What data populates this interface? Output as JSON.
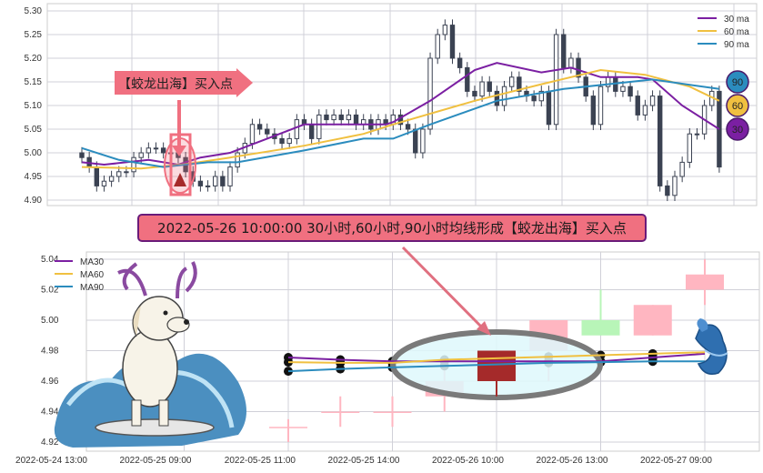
{
  "chart_data": [
    {
      "type": "candlestick",
      "ylim": [
        4.9,
        5.3
      ],
      "yticks": [
        "5.30",
        "5.25",
        "5.20",
        "5.15",
        "5.10",
        "5.05",
        "5.00",
        "4.95",
        "4.90"
      ],
      "grid": true,
      "legend_placement": "top-right",
      "closes": [
        4.99,
        4.97,
        4.93,
        4.94,
        4.95,
        4.96,
        4.96,
        4.99,
        5.0,
        5.01,
        5.01,
        5.0,
        5.0,
        4.99,
        4.96,
        4.94,
        4.93,
        4.93,
        4.95,
        4.93,
        4.97,
        5.0,
        5.02,
        5.06,
        5.05,
        5.04,
        5.03,
        5.02,
        5.03,
        5.07,
        5.06,
        5.03,
        5.08,
        5.07,
        5.08,
        5.07,
        5.08,
        5.06,
        5.07,
        5.05,
        5.07,
        5.06,
        5.08,
        5.06,
        5.05,
        5.0,
        5.05,
        5.2,
        5.25,
        5.27,
        5.2,
        5.18,
        5.13,
        5.12,
        5.15,
        5.13,
        5.1,
        5.14,
        5.16,
        5.13,
        5.12,
        5.11,
        5.13,
        5.06,
        5.25,
        5.18,
        5.2,
        5.16,
        5.12,
        5.06,
        5.14,
        5.16,
        5.13,
        5.14,
        5.12,
        5.08,
        5.1,
        5.12,
        4.93,
        4.91,
        4.95,
        4.98,
        5.04,
        5.04,
        5.1,
        5.13,
        4.97
      ],
      "series": [
        {
          "name": "30 ma",
          "color": "#7b1fa2",
          "points": [
            [
              0,
              4.98
            ],
            [
              3,
              4.975
            ],
            [
              9,
              4.985
            ],
            [
              13,
              4.975
            ],
            [
              16,
              4.99
            ],
            [
              20,
              5.0
            ],
            [
              25,
              5.03
            ],
            [
              30,
              5.06
            ],
            [
              41,
              5.06
            ],
            [
              42,
              5.065
            ],
            [
              47,
              5.11
            ],
            [
              53,
              5.175
            ],
            [
              56,
              5.19
            ],
            [
              62,
              5.17
            ],
            [
              66,
              5.18
            ],
            [
              70,
              5.16
            ],
            [
              75,
              5.16
            ],
            [
              77,
              5.155
            ],
            [
              81,
              5.1
            ],
            [
              86,
              5.05
            ]
          ]
        },
        {
          "name": "60 ma",
          "color": "#f0c040",
          "points": [
            [
              0,
              4.97
            ],
            [
              8,
              4.967
            ],
            [
              14,
              4.976
            ],
            [
              20,
              4.99
            ],
            [
              30,
              5.015
            ],
            [
              38,
              5.04
            ],
            [
              42,
              5.06
            ],
            [
              53,
              5.11
            ],
            [
              62,
              5.145
            ],
            [
              70,
              5.175
            ],
            [
              76,
              5.165
            ],
            [
              82,
              5.14
            ],
            [
              86,
              5.11
            ]
          ]
        },
        {
          "name": "90 ma",
          "color": "#2b8cbe",
          "points": [
            [
              0,
              5.01
            ],
            [
              5,
              4.985
            ],
            [
              11,
              4.97
            ],
            [
              17,
              4.98
            ],
            [
              21,
              4.98
            ],
            [
              30,
              5.005
            ],
            [
              38,
              5.03
            ],
            [
              42,
              5.03
            ],
            [
              47,
              5.06
            ],
            [
              56,
              5.11
            ],
            [
              65,
              5.135
            ],
            [
              77,
              5.155
            ],
            [
              86,
              5.135
            ]
          ]
        }
      ],
      "end_badges": [
        "90",
        "60",
        "30"
      ],
      "annotation": "【蛟龙出海】买入点",
      "signal_index": 19
    },
    {
      "type": "candlestick",
      "ylim": [
        4.915,
        5.045
      ],
      "yticks": [
        "5.04",
        "5.02",
        "5.00",
        "4.98",
        "4.96",
        "4.94",
        "4.92"
      ],
      "xticks": [
        {
          "i": 0,
          "label": "2022-05-24 13:00"
        },
        {
          "i": 2,
          "label": "2022-05-25 09:00"
        },
        {
          "i": 4,
          "label": "2022-05-25 11:00"
        },
        {
          "i": 6,
          "label": "2022-05-25 14:00"
        },
        {
          "i": 8,
          "label": "2022-05-26 10:00"
        },
        {
          "i": 10,
          "label": "2022-05-26 13:00"
        },
        {
          "i": 12,
          "label": "2022-05-27 09:00"
        }
      ],
      "grid": true,
      "legend_placement": "top-left",
      "candles": [
        {
          "i": 4,
          "o": 4.93,
          "c": 4.93,
          "h": 4.935,
          "l": 4.92,
          "color": "#ffb6c1"
        },
        {
          "i": 5,
          "o": 4.94,
          "c": 4.94,
          "h": 4.95,
          "l": 4.93,
          "color": "#ffb6c1"
        },
        {
          "i": 6,
          "o": 4.94,
          "c": 4.94,
          "h": 4.95,
          "l": 4.93,
          "color": "#ffb6c1"
        },
        {
          "i": 7,
          "o": 4.95,
          "c": 4.96,
          "h": 4.97,
          "l": 4.94,
          "color": "#ffb6c1"
        },
        {
          "i": 8,
          "o": 4.96,
          "c": 4.98,
          "h": 4.98,
          "l": 4.95,
          "color": "#a52a2a"
        },
        {
          "i": 9,
          "o": 4.98,
          "c": 5.0,
          "h": 5.0,
          "l": 4.96,
          "color": "#ffb6c1"
        },
        {
          "i": 10,
          "o": 5.0,
          "c": 4.99,
          "h": 5.02,
          "l": 4.99,
          "color": "#b8f5b8"
        },
        {
          "i": 11,
          "o": 4.99,
          "c": 5.01,
          "h": 5.01,
          "l": 4.99,
          "color": "#ffb6c1"
        },
        {
          "i": 12,
          "o": 5.02,
          "c": 5.03,
          "h": 5.04,
          "l": 5.01,
          "color": "#ffb6c1"
        }
      ],
      "series": [
        {
          "name": "MA30",
          "color": "#7b1fa2",
          "points": [
            [
              4,
              4.9755
            ],
            [
              5,
              4.974
            ],
            [
              6,
              4.973
            ],
            [
              7,
              4.973
            ],
            [
              8,
              4.973
            ],
            [
              9,
              4.973
            ],
            [
              10,
              4.973
            ],
            [
              11,
              4.9755
            ],
            [
              12,
              4.978
            ]
          ]
        },
        {
          "name": "MA60",
          "color": "#f0c040",
          "points": [
            [
              4,
              4.9725
            ],
            [
              5,
              4.972
            ],
            [
              6,
              4.972
            ],
            [
              7,
              4.974
            ],
            [
              8,
              4.975
            ],
            [
              9,
              4.976
            ],
            [
              10,
              4.977
            ],
            [
              11,
              4.978
            ],
            [
              12,
              4.979
            ]
          ]
        },
        {
          "name": "MA90",
          "color": "#2b8cbe",
          "points": [
            [
              4,
              4.9665
            ],
            [
              5,
              4.968
            ],
            [
              6,
              4.969
            ],
            [
              7,
              4.97
            ],
            [
              8,
              4.971
            ],
            [
              9,
              4.972
            ],
            [
              10,
              4.9725
            ],
            [
              11,
              4.973
            ],
            [
              12,
              4.973
            ]
          ]
        }
      ],
      "highlight_index": 8
    }
  ],
  "banner": {
    "text": "2022-05-26 10:00:00 30小时,60小时,90小时均线形成【蛟龙出海】买入点"
  },
  "colors": {
    "annotation_pink": "#f07080",
    "banner_border": "#6a1b7a",
    "ellipse_stroke": "#7a7a7a",
    "ellipse_fill": "#def8fb"
  }
}
